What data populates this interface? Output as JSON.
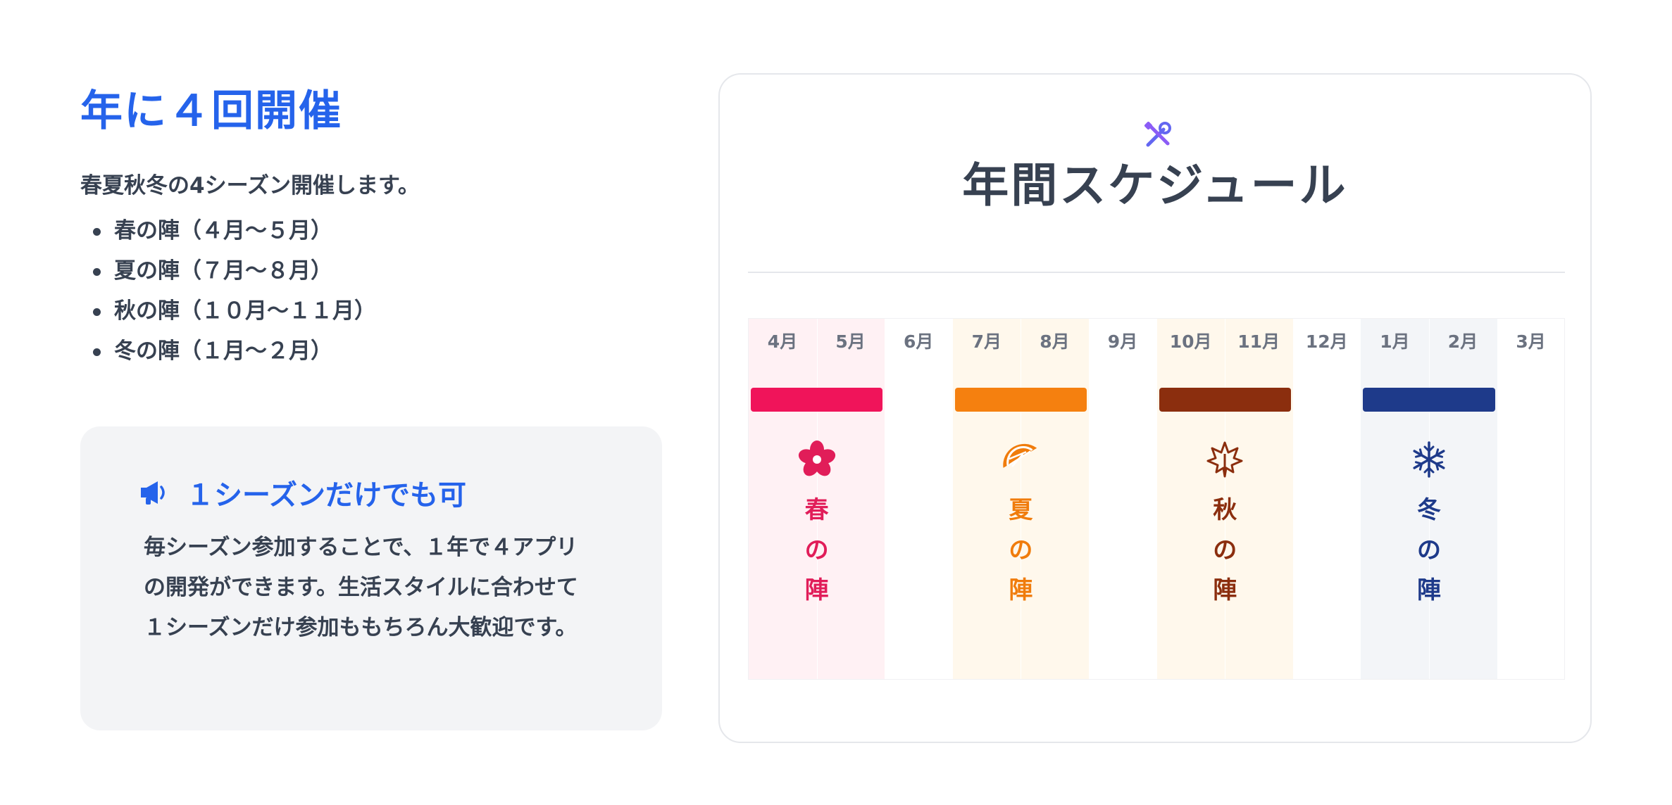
{
  "left": {
    "heading": "年に４回開催",
    "intro": "春夏秋冬の4シーズン開催します。",
    "seasons": [
      "春の陣（４月〜５月）",
      "夏の陣（７月〜８月）",
      "秋の陣（１０月〜１１月）",
      "冬の陣（１月〜２月）"
    ],
    "callout": {
      "icon": "megaphone-icon",
      "title": "１シーズンだけでも可",
      "body": "毎シーズン参加することで、１年で４アプリの開発ができます。生活スタイルに合わせて１シーズンだけ参加ももちろん大歓迎です。"
    }
  },
  "card": {
    "icon": "tools-icon",
    "title": "年間スケジュール",
    "months": [
      "4月",
      "5月",
      "6月",
      "7月",
      "8月",
      "9月",
      "10月",
      "11月",
      "12月",
      "1月",
      "2月",
      "3月"
    ],
    "seasons": [
      {
        "key": "spring",
        "label_chars": [
          "春",
          "の",
          "陣"
        ],
        "icon": "sakura-icon",
        "bar_color": "#f0145a",
        "text_color": "#e11d59",
        "bg_color": "#fff1f4"
      },
      {
        "key": "summer",
        "label_chars": [
          "夏",
          "の",
          "陣"
        ],
        "icon": "orange-slice-icon",
        "bar_color": "#f5800f",
        "text_color": "#f07c0c",
        "bg_color": "#fff8ec"
      },
      {
        "key": "autumn",
        "label_chars": [
          "秋",
          "の",
          "陣"
        ],
        "icon": "maple-leaf-icon",
        "bar_color": "#8b2e0e",
        "text_color": "#8b2e0e",
        "bg_color": "#fff8ec"
      },
      {
        "key": "winter",
        "label_chars": [
          "冬",
          "の",
          "陣"
        ],
        "icon": "snowflake-icon",
        "bar_color": "#1e3a8a",
        "text_color": "#1e3a8a",
        "bg_color": "#f3f5f8"
      }
    ]
  }
}
